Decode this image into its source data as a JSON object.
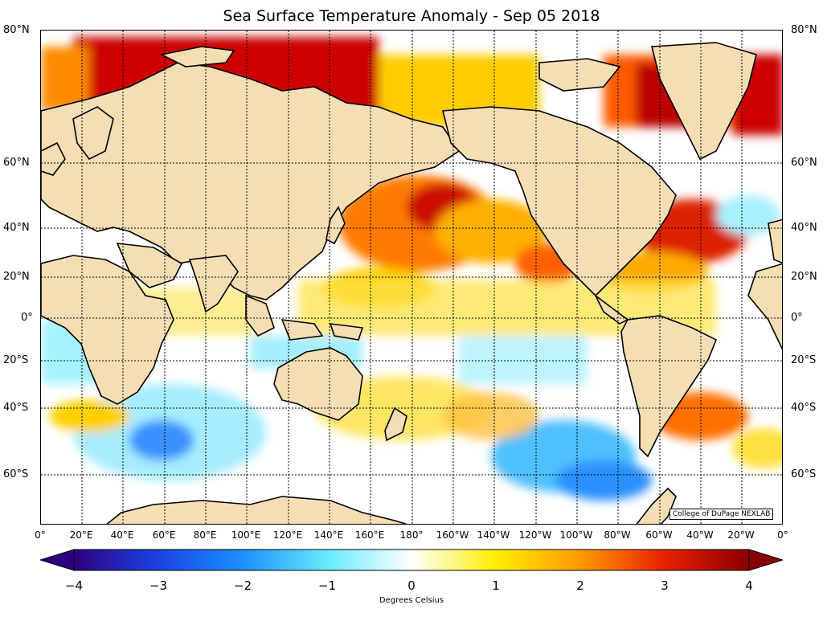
{
  "title": "Sea Surface Temperature Anomaly - Sep 05 2018",
  "lat_labels": {
    "80n": "80°N",
    "60n": "60°N",
    "40n": "40°N",
    "20n": "20°N",
    "eq": "0°",
    "20s": "20°S",
    "40s": "40°S",
    "60s": "60°S"
  },
  "lon_labels": [
    "0°",
    "20°E",
    "40°E",
    "60°E",
    "80°E",
    "100°E",
    "120°E",
    "140°E",
    "160°E",
    "180°",
    "160°W",
    "140°W",
    "120°W",
    "100°W",
    "80°W",
    "60°W",
    "40°W",
    "20°W",
    "0°"
  ],
  "colorbar": {
    "ticks": [
      "−4",
      "−3",
      "−2",
      "−1",
      "0",
      "1",
      "2",
      "3",
      "4"
    ],
    "label": "Degrees Celsius",
    "min": -4,
    "max": 4,
    "extend": "both"
  },
  "credit": "College of DuPage NEXLAB",
  "colors": {
    "land": "#f5deb3",
    "ocean_neutral": "#ffffff",
    "warm_strong": "#c00000",
    "warm_mid": "#ff6a00",
    "warm_light": "#ffee00",
    "cool_light": "#7ff0ff",
    "cool_mid": "#2fa8ff",
    "cool_strong": "#2e0080"
  }
}
